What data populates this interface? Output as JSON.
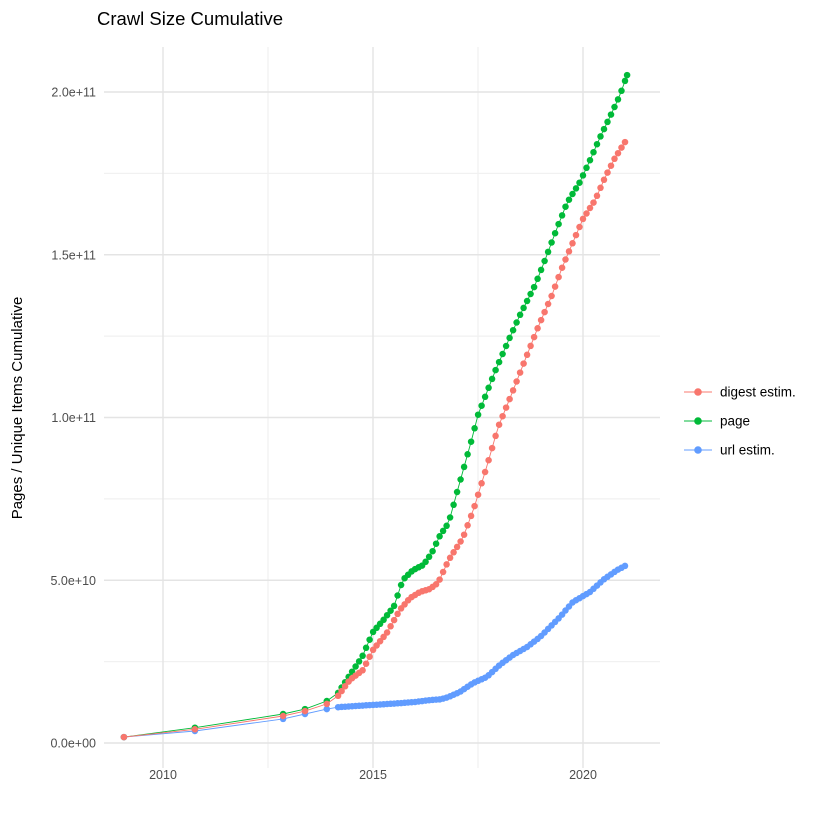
{
  "title": "Crawl Size Cumulative",
  "axes": {
    "y_label": "Pages / Unique Items Cumulative",
    "x_label": "",
    "x_ticks": [
      {
        "value": 2010,
        "label": "2010"
      },
      {
        "value": 2015,
        "label": "2015"
      },
      {
        "value": 2020,
        "label": "2020"
      }
    ],
    "x_minor_gridlines": [
      2012.5,
      2017.5
    ],
    "y_ticks": [
      {
        "value_e9": 0,
        "label": "0.0e+00"
      },
      {
        "value_e9": 50,
        "label": "5.0e+10"
      },
      {
        "value_e9": 100,
        "label": "1.0e+11"
      },
      {
        "value_e9": 150,
        "label": "1.5e+11"
      },
      {
        "value_e9": 200,
        "label": "2.0e+11"
      }
    ],
    "y_minor_gridlines_e9": [
      25,
      75,
      125,
      175
    ]
  },
  "legend": {
    "items": [
      {
        "label": "digest estim.",
        "color": "#F8766D"
      },
      {
        "label": "page",
        "color": "#00BA38"
      },
      {
        "label": "url estim.",
        "color": "#619CFF"
      }
    ]
  },
  "chart_data": {
    "type": "scatter",
    "title": "Crawl Size Cumulative",
    "xlabel": "",
    "ylabel": "Pages / Unique Items Cumulative",
    "x_range_years": [
      2008.6,
      2021.9
    ],
    "y_range_e9": [
      0,
      214
    ],
    "grid": true,
    "legend_position": "right-center",
    "units_note": "x = decimal year; y values in billions (1e9) of pages / unique items, cumulative",
    "sparse_points_before": 2014.17,
    "dot_interval_years": 0.0833,
    "series": [
      {
        "name": "page",
        "color": "#00BA38",
        "anchors": [
          [
            2009.07,
            1.8
          ],
          [
            2010.76,
            4.7
          ],
          [
            2012.86,
            8.9
          ],
          [
            2013.38,
            10.4
          ],
          [
            2013.9,
            12.9
          ],
          [
            2014.17,
            15.4
          ],
          [
            2014.45,
            20.9
          ],
          [
            2014.74,
            26.4
          ],
          [
            2015.0,
            34.1
          ],
          [
            2015.25,
            37.8
          ],
          [
            2015.5,
            42.0
          ],
          [
            2015.71,
            50.1
          ],
          [
            2015.95,
            53.1
          ],
          [
            2016.2,
            54.7
          ],
          [
            2016.4,
            58.4
          ],
          [
            2016.6,
            63.9
          ],
          [
            2016.8,
            67.6
          ],
          [
            2017.0,
            77.0
          ],
          [
            2017.36,
            93.7
          ],
          [
            2017.5,
            100.8
          ],
          [
            2017.9,
            114.0
          ],
          [
            2018.26,
            124.7
          ],
          [
            2018.5,
            131.5
          ],
          [
            2018.86,
            140.7
          ],
          [
            2019.14,
            149.9
          ],
          [
            2019.38,
            158.2
          ],
          [
            2019.62,
            165.9
          ],
          [
            2019.93,
            172.4
          ],
          [
            2020.17,
            179.1
          ],
          [
            2020.4,
            185.9
          ],
          [
            2020.64,
            192.3
          ],
          [
            2020.88,
            199.0
          ],
          [
            2021.05,
            205.2
          ]
        ]
      },
      {
        "name": "url estim.",
        "color": "#619CFF",
        "anchors": [
          [
            2009.07,
            1.8
          ],
          [
            2010.76,
            3.7
          ],
          [
            2012.86,
            7.4
          ],
          [
            2013.38,
            8.9
          ],
          [
            2013.9,
            10.4
          ],
          [
            2014.17,
            11.0
          ],
          [
            2014.5,
            11.3
          ],
          [
            2015.0,
            11.7
          ],
          [
            2015.5,
            12.1
          ],
          [
            2016.0,
            12.6
          ],
          [
            2016.36,
            13.2
          ],
          [
            2016.6,
            13.4
          ],
          [
            2016.79,
            14.1
          ],
          [
            2017.07,
            15.7
          ],
          [
            2017.38,
            18.4
          ],
          [
            2017.71,
            20.3
          ],
          [
            2018.02,
            24.0
          ],
          [
            2018.33,
            27.0
          ],
          [
            2018.67,
            29.5
          ],
          [
            2018.98,
            32.6
          ],
          [
            2019.45,
            38.7
          ],
          [
            2019.76,
            43.3
          ],
          [
            2020.17,
            46.4
          ],
          [
            2020.48,
            50.1
          ],
          [
            2020.81,
            53.1
          ],
          [
            2021.0,
            54.4
          ]
        ]
      },
      {
        "name": "digest estim.",
        "color": "#F8766D",
        "anchors": [
          [
            2009.07,
            1.8
          ],
          [
            2010.76,
            4.2
          ],
          [
            2012.86,
            8.3
          ],
          [
            2013.38,
            9.8
          ],
          [
            2013.9,
            12.0
          ],
          [
            2014.17,
            14.5
          ],
          [
            2014.45,
            19.4
          ],
          [
            2014.76,
            22.4
          ],
          [
            2015.0,
            28.6
          ],
          [
            2015.33,
            33.8
          ],
          [
            2015.64,
            40.9
          ],
          [
            2015.88,
            44.5
          ],
          [
            2016.12,
            46.4
          ],
          [
            2016.35,
            47.3
          ],
          [
            2016.55,
            49.2
          ],
          [
            2016.8,
            56.2
          ],
          [
            2017.14,
            63.0
          ],
          [
            2017.4,
            72.0
          ],
          [
            2017.71,
            85.0
          ],
          [
            2017.98,
            97.1
          ],
          [
            2018.31,
            107.5
          ],
          [
            2018.62,
            117.7
          ],
          [
            2018.93,
            127.8
          ],
          [
            2019.26,
            137.6
          ],
          [
            2019.5,
            146.0
          ],
          [
            2019.75,
            153.5
          ],
          [
            2020.0,
            161.0
          ],
          [
            2020.29,
            166.8
          ],
          [
            2020.52,
            173.6
          ],
          [
            2020.76,
            179.7
          ],
          [
            2021.0,
            184.6
          ]
        ]
      }
    ]
  }
}
